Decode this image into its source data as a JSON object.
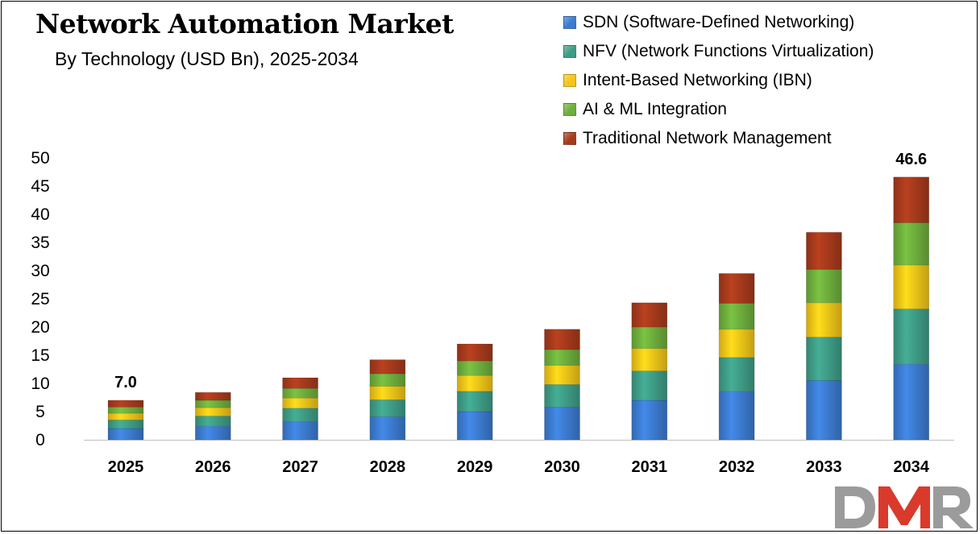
{
  "chart_data": {
    "type": "bar",
    "stacked": true,
    "title": "Network Automation Market",
    "subtitle": "By Technology (USD Bn), 2025-2034",
    "categories": [
      "2025",
      "2026",
      "2027",
      "2028",
      "2029",
      "2030",
      "2031",
      "2032",
      "2033",
      "2034"
    ],
    "series": [
      {
        "name": "SDN (Software-Defined Networking)",
        "color": "#3C7BD0",
        "values": [
          2.0,
          2.4,
          3.2,
          4.1,
          5.0,
          5.8,
          7.0,
          8.6,
          10.5,
          13.4
        ]
      },
      {
        "name": "NFV (Network Functions Virtualization)",
        "color": "#3E9C86",
        "values": [
          1.5,
          1.8,
          2.4,
          3.0,
          3.6,
          4.0,
          5.2,
          6.0,
          7.7,
          9.8
        ]
      },
      {
        "name": "Intent-Based Networking (IBN)",
        "color": "#F5C518",
        "values": [
          1.2,
          1.5,
          1.8,
          2.4,
          2.8,
          3.4,
          4.0,
          5.0,
          6.1,
          7.8
        ]
      },
      {
        "name": "AI & ML Integration",
        "color": "#6EAE3C",
        "values": [
          1.1,
          1.3,
          1.7,
          2.2,
          2.6,
          2.8,
          3.8,
          4.6,
          5.9,
          7.5
        ]
      },
      {
        "name": "Traditional Network Management",
        "color": "#A63A1C",
        "values": [
          1.2,
          1.4,
          1.9,
          2.5,
          3.0,
          3.6,
          4.3,
          5.3,
          6.6,
          8.1
        ]
      }
    ],
    "data_labels": [
      {
        "category": "2025",
        "text": "7.0"
      },
      {
        "category": "2034",
        "text": "46.6"
      }
    ],
    "yticks": [
      "0",
      "5",
      "10",
      "15",
      "20",
      "25",
      "30",
      "35",
      "40",
      "45",
      "50"
    ],
    "ylim": [
      0,
      50
    ],
    "xlabel": "",
    "ylabel": "",
    "legend_position": "top-right",
    "grid": false
  },
  "logo": {
    "text": "DMR",
    "colors": [
      "#9B9B9B",
      "#D93A2B",
      "#9B9B9B"
    ]
  }
}
